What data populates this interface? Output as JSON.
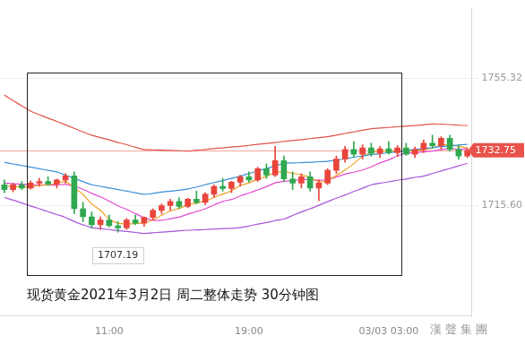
{
  "chart_data": {
    "type": "candlestick",
    "title": "现货黄金2021年3月2日 周二整体走势  30分钟图",
    "watermark": "漢聲集團",
    "categories": [
      null,
      null,
      null,
      null,
      null,
      null,
      null,
      null,
      null,
      null,
      null,
      null,
      "11:00",
      null,
      null,
      null,
      null,
      null,
      null,
      null,
      null,
      null,
      null,
      null,
      null,
      null,
      null,
      null,
      "19:00",
      null,
      null,
      null,
      null,
      null,
      null,
      null,
      null,
      null,
      null,
      null,
      null,
      null,
      null,
      null,
      "03/03 03:00",
      null,
      null,
      null,
      null,
      null,
      null,
      null,
      null,
      null
    ],
    "candles": {
      "open": [
        1722.0,
        1720.5,
        1722.0,
        1721.0,
        1722.5,
        1723.0,
        1722.2,
        1723.5,
        1724.8,
        1714.5,
        1712.0,
        1709.5,
        1711.0,
        1709.2,
        1708.5,
        1711.0,
        1710.0,
        1711.8,
        1714.0,
        1715.5,
        1716.8,
        1715.2,
        1717.5,
        1716.5,
        1719.0,
        1721.5,
        1720.8,
        1722.8,
        1724.5,
        1723.5,
        1727.0,
        1725.0,
        1729.5,
        1723.8,
        1722.5,
        1724.5,
        1721.0,
        1722.5,
        1726.5,
        1730.0,
        1733.0,
        1731.5,
        1733.5,
        1731.8,
        1733.2,
        1732.0,
        1733.5,
        1731.5,
        1733.0,
        1735.0,
        1734.2,
        1736.5,
        1733.0,
        1731.0
      ],
      "high": [
        1723.5,
        1722.5,
        1723.0,
        1723.2,
        1724.0,
        1724.5,
        1723.8,
        1725.5,
        1726.0,
        1716.5,
        1713.5,
        1712.0,
        1712.5,
        1710.5,
        1711.5,
        1712.5,
        1712.0,
        1714.5,
        1716.0,
        1717.5,
        1718.0,
        1717.8,
        1720.0,
        1719.5,
        1722.0,
        1724.0,
        1723.0,
        1725.0,
        1726.0,
        1727.5,
        1728.5,
        1734.0,
        1731.0,
        1726.0,
        1725.5,
        1726.0,
        1723.5,
        1727.0,
        1731.0,
        1734.0,
        1735.5,
        1734.5,
        1735.0,
        1734.0,
        1735.5,
        1734.2,
        1735.0,
        1733.8,
        1736.0,
        1737.5,
        1737.0,
        1737.5,
        1734.5,
        1733.5
      ],
      "low": [
        1719.5,
        1719.8,
        1720.5,
        1720.6,
        1721.5,
        1721.8,
        1721.0,
        1722.5,
        1713.0,
        1710.5,
        1708.5,
        1708.0,
        1708.8,
        1707.19,
        1708.0,
        1709.5,
        1709.0,
        1711.0,
        1713.0,
        1714.0,
        1714.5,
        1714.8,
        1716.0,
        1715.8,
        1718.0,
        1720.0,
        1719.5,
        1721.5,
        1722.8,
        1723.0,
        1724.0,
        1724.5,
        1723.0,
        1720.5,
        1721.0,
        1720.0,
        1717.0,
        1722.0,
        1725.5,
        1729.0,
        1730.5,
        1730.0,
        1731.0,
        1730.5,
        1731.5,
        1730.8,
        1731.2,
        1730.5,
        1732.0,
        1733.5,
        1733.0,
        1732.5,
        1730.0,
        1730.5
      ],
      "close": [
        1720.5,
        1722.0,
        1721.0,
        1722.5,
        1723.0,
        1722.2,
        1723.5,
        1724.8,
        1714.5,
        1712.0,
        1709.5,
        1711.0,
        1709.2,
        1708.5,
        1711.0,
        1710.0,
        1711.8,
        1714.0,
        1715.5,
        1716.8,
        1715.2,
        1717.5,
        1716.5,
        1719.0,
        1721.5,
        1720.8,
        1722.8,
        1724.5,
        1723.5,
        1727.0,
        1725.0,
        1729.5,
        1723.8,
        1722.5,
        1724.5,
        1721.0,
        1722.5,
        1726.5,
        1730.0,
        1733.0,
        1731.5,
        1733.5,
        1731.8,
        1733.2,
        1732.0,
        1733.5,
        1731.5,
        1733.0,
        1735.0,
        1734.2,
        1736.5,
        1733.0,
        1731.0,
        1732.75
      ]
    },
    "series": [
      {
        "color": "#e0544a",
        "values": [
          1750,
          1748.3,
          1746.6,
          1745,
          1743.9,
          1742.8,
          1741.8,
          1740.7,
          1739.6,
          1738.5,
          1737.5,
          1736.7,
          1736.0,
          1735.2,
          1734.5,
          1733.7,
          1733.0,
          1732.9,
          1732.8,
          1732.7,
          1732.6,
          1732.5,
          1732.8,
          1733.0,
          1733.3,
          1733.5,
          1733.8,
          1734.0,
          1734.3,
          1734.6,
          1734.9,
          1735.2,
          1735.5,
          1735.8,
          1736.1,
          1736.4,
          1736.7,
          1737.0,
          1737.5,
          1738.0,
          1738.5,
          1739.0,
          1739.5,
          1739.7,
          1739.9,
          1740.1,
          1740.3,
          1740.5,
          1740.7,
          1741.0,
          1740.9,
          1740.8,
          1740.6,
          1740.5
        ]
      },
      {
        "color": "#3c8fd8",
        "values": [
          1729,
          1728.5,
          1728,
          1727.5,
          1727,
          1726.5,
          1726,
          1725,
          1724,
          1723,
          1722,
          1721.5,
          1721,
          1720.5,
          1720,
          1719.5,
          1719,
          1719.3,
          1719.7,
          1720.0,
          1720.3,
          1720.7,
          1721.3,
          1722.0,
          1722.7,
          1723.3,
          1724.0,
          1724.7,
          1725.5,
          1726.3,
          1727.1,
          1727.9,
          1728.7,
          1728.8,
          1728.9,
          1729.0,
          1729.2,
          1729.3,
          1729.7,
          1730.1,
          1730.6,
          1731.0,
          1731.4,
          1731.7,
          1732.0,
          1732.3,
          1732.6,
          1733.0,
          1733.3,
          1733.6,
          1733.9,
          1734.1,
          1734.4,
          1734.6
        ]
      },
      {
        "color": "#a455d8",
        "values": [
          1718,
          1717.2,
          1716.3,
          1715.4,
          1714.5,
          1713.6,
          1712.7,
          1711.8,
          1710.5,
          1709.5,
          1708.6,
          1708.3,
          1708.0,
          1707.7,
          1707.4,
          1707.1,
          1706.8,
          1707.0,
          1707.2,
          1707.4,
          1707.6,
          1707.8,
          1707.9,
          1708.0,
          1708.2,
          1708.3,
          1708.4,
          1708.6,
          1709.1,
          1709.7,
          1710.2,
          1710.8,
          1711.3,
          1712.4,
          1713.5,
          1714.5,
          1715.6,
          1716.7,
          1717.8,
          1718.8,
          1719.9,
          1720.9,
          1722.0,
          1722.5,
          1722.9,
          1723.4,
          1723.8,
          1724.3,
          1724.7,
          1725.5,
          1726.3,
          1727.1,
          1727.9,
          1728.7
        ]
      },
      {
        "color": "#f0a020",
        "values": [
          1721.5,
          1721.5,
          1721.3,
          1721.4,
          1721.8,
          1722.0,
          1722.4,
          1723.0,
          1721.0,
          1719.0,
          1716.0,
          1714.0,
          1711.3,
          1710.0,
          1709.8,
          1709.9,
          1710.1,
          1711.0,
          1712.5,
          1713.8,
          1714.6,
          1715.7,
          1716.3,
          1717.0,
          1718.0,
          1719.1,
          1720.1,
          1721.7,
          1722.6,
          1723.7,
          1724.6,
          1725.9,
          1726.0,
          1725.6,
          1725.1,
          1724.3,
          1722.9,
          1723.4,
          1724.9,
          1726.6,
          1728.6,
          1730.9,
          1732.0,
          1732.6,
          1732.4,
          1732.8,
          1732.4,
          1732.6,
          1733.0,
          1733.4,
          1734.4,
          1734.4,
          1734.0,
          1733.5
        ]
      },
      {
        "color": "#e24ad0",
        "values": [
          1722.5,
          1722.3,
          1722.2,
          1722.0,
          1722.0,
          1721.9,
          1721.9,
          1722.1,
          1721.5,
          1720.6,
          1719.3,
          1718.2,
          1716.9,
          1715.4,
          1714.3,
          1713.0,
          1711.7,
          1710.9,
          1710.9,
          1711.4,
          1711.9,
          1712.8,
          1713.6,
          1714.5,
          1715.7,
          1716.8,
          1717.4,
          1718.5,
          1719.4,
          1720.4,
          1721.4,
          1722.6,
          1723.1,
          1723.3,
          1723.6,
          1723.6,
          1723.4,
          1723.6,
          1724.4,
          1725.3,
          1725.9,
          1726.6,
          1727.6,
          1728.8,
          1729.8,
          1731.0,
          1731.9,
          1732.0,
          1732.3,
          1732.5,
          1733.0,
          1733.2,
          1733.1,
          1733.2
        ]
      }
    ],
    "last_price": {
      "value": 1732.75,
      "label": "1732.75"
    },
    "annotations": [
      {
        "text": "1707.19",
        "value": 1707.19,
        "category_index": 13
      }
    ],
    "ylim": [
      1681,
      1777
    ],
    "yticks": [
      {
        "value": 1715.6,
        "label": "1715.60"
      },
      {
        "value": 1755.32,
        "label": "1755.32"
      }
    ],
    "grid": true
  }
}
